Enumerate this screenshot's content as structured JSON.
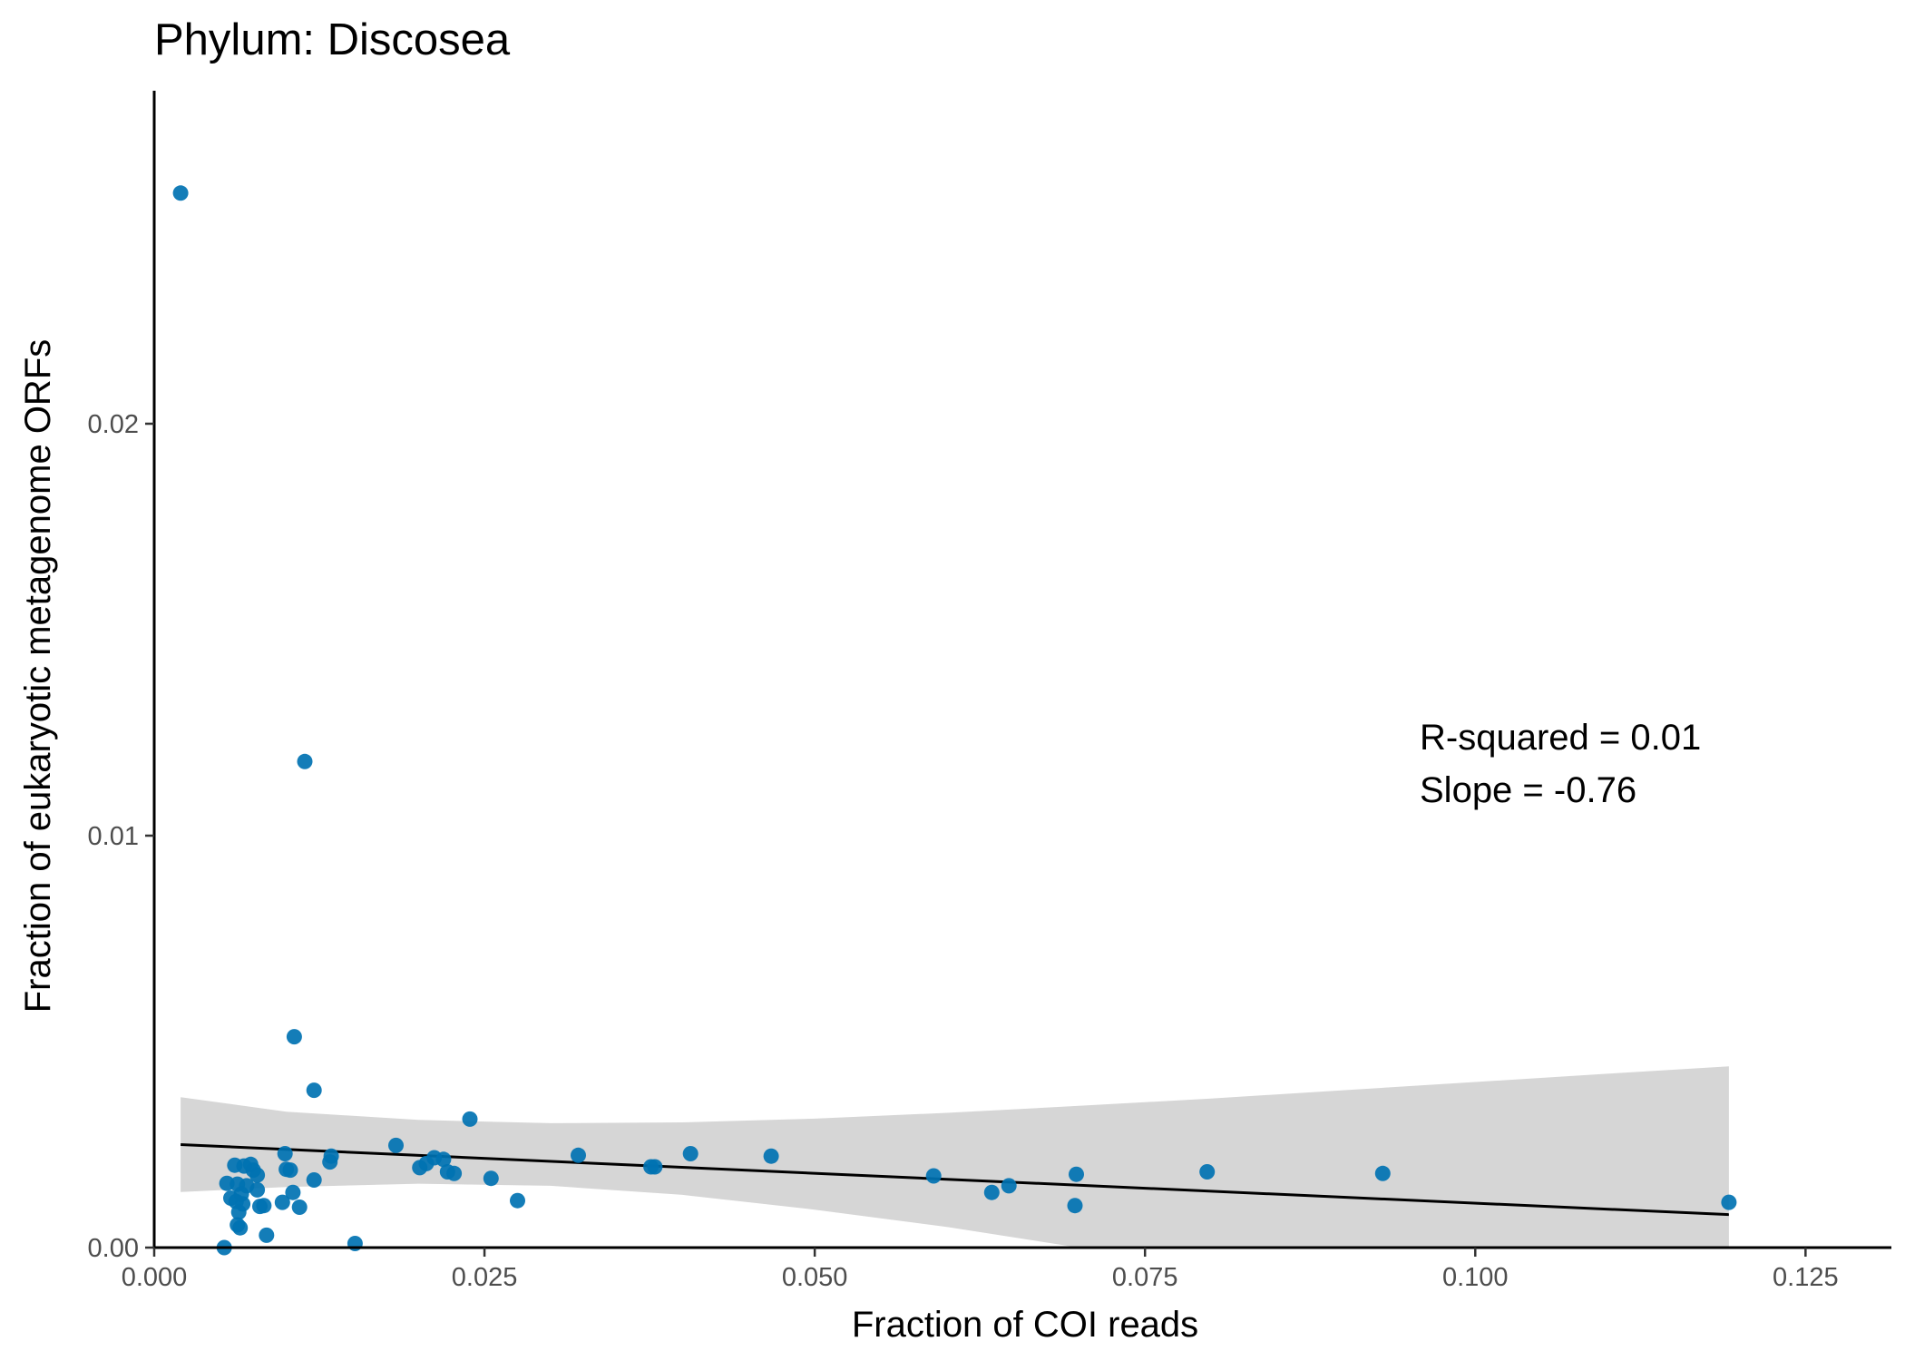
{
  "chart_data": {
    "type": "scatter",
    "title": "Phylum:  Discosea",
    "xlabel": "Fraction of COI reads",
    "ylabel": "Fraction of eukaryotic metagenome ORFs",
    "xlim": [
      0,
      0.1315
    ],
    "ylim": [
      0,
      0.0256
    ],
    "x_ticks": [
      0.0,
      0.025,
      0.05,
      0.075,
      0.1,
      0.125
    ],
    "x_tick_labels": [
      "0.000",
      "0.025",
      "0.050",
      "0.075",
      "0.100",
      "0.125"
    ],
    "y_ticks": [
      0.0,
      0.01,
      0.02
    ],
    "y_tick_labels": [
      "0.00",
      "0.01",
      "0.02"
    ],
    "grid": false,
    "legend": "none",
    "colors": {
      "points": "#0072b2",
      "fit_line": "#000000",
      "confidence_band": "#d6d6d6",
      "axis": "#000000"
    },
    "series": [
      {
        "points": [
          [
            0.002,
            0.0256
          ],
          [
            0.0114,
            0.0118
          ],
          [
            0.0106,
            0.00512
          ],
          [
            0.0121,
            0.00382
          ],
          [
            0.0239,
            0.00312
          ],
          [
            0.0183,
            0.00248
          ],
          [
            0.0099,
            0.00228
          ],
          [
            0.0134,
            0.00222
          ],
          [
            0.0133,
            0.00208
          ],
          [
            0.0212,
            0.00218
          ],
          [
            0.0219,
            0.00214
          ],
          [
            0.0206,
            0.00204
          ],
          [
            0.0201,
            0.00194
          ],
          [
            0.0222,
            0.00184
          ],
          [
            0.0227,
            0.0018
          ],
          [
            0.0255,
            0.00168
          ],
          [
            0.0275,
            0.00114
          ],
          [
            0.0321,
            0.00224
          ],
          [
            0.0376,
            0.00196
          ],
          [
            0.0379,
            0.00196
          ],
          [
            0.0406,
            0.00228
          ],
          [
            0.0467,
            0.00222
          ],
          [
            0.059,
            0.00174
          ],
          [
            0.0634,
            0.00134
          ],
          [
            0.0647,
            0.0015
          ],
          [
            0.0698,
            0.00178
          ],
          [
            0.0697,
            0.00102
          ],
          [
            0.0797,
            0.00184
          ],
          [
            0.093,
            0.0018
          ],
          [
            0.1192,
            0.0011
          ],
          [
            0.0073,
            0.00202
          ],
          [
            0.0061,
            0.002
          ],
          [
            0.0068,
            0.00198
          ],
          [
            0.0075,
            0.00188
          ],
          [
            0.0078,
            0.00176
          ],
          [
            0.0055,
            0.00156
          ],
          [
            0.0063,
            0.00154
          ],
          [
            0.007,
            0.0015
          ],
          [
            0.0078,
            0.0014
          ],
          [
            0.0066,
            0.0013
          ],
          [
            0.0058,
            0.0012
          ],
          [
            0.0062,
            0.00112
          ],
          [
            0.0067,
            0.00106
          ],
          [
            0.008,
            0.001
          ],
          [
            0.0083,
            0.00102
          ],
          [
            0.0097,
            0.0011
          ],
          [
            0.01,
            0.0019
          ],
          [
            0.0103,
            0.00188
          ],
          [
            0.0105,
            0.00134
          ],
          [
            0.011,
            0.00098
          ],
          [
            0.0121,
            0.00164
          ],
          [
            0.0064,
            0.00086
          ],
          [
            0.0063,
            0.00055
          ],
          [
            0.0065,
            0.00048
          ],
          [
            0.0085,
            0.0003
          ],
          [
            0.0053,
            0.0
          ],
          [
            0.0152,
            0.0001
          ]
        ]
      }
    ],
    "fit_line": {
      "x": [
        0.002,
        0.1192
      ],
      "y": [
        0.0025,
        0.0008
      ]
    },
    "confidence_band": {
      "x": [
        0.002,
        0.01,
        0.02,
        0.03,
        0.04,
        0.05,
        0.06,
        0.07,
        0.08,
        0.09,
        0.1,
        0.11,
        0.1192
      ],
      "upper": [
        0.00365,
        0.0033,
        0.0031,
        0.00302,
        0.00304,
        0.00313,
        0.00327,
        0.00344,
        0.00362,
        0.00382,
        0.00402,
        0.00422,
        0.0044
      ],
      "lower": [
        0.00135,
        0.00147,
        0.00155,
        0.0015,
        0.00128,
        0.00092,
        0.0005,
        0.0,
        0.0,
        0.0,
        0.0,
        0.0,
        0.0
      ]
    },
    "annotations": [
      "R-squared =  0.01",
      "Slope =  -0.76"
    ]
  }
}
